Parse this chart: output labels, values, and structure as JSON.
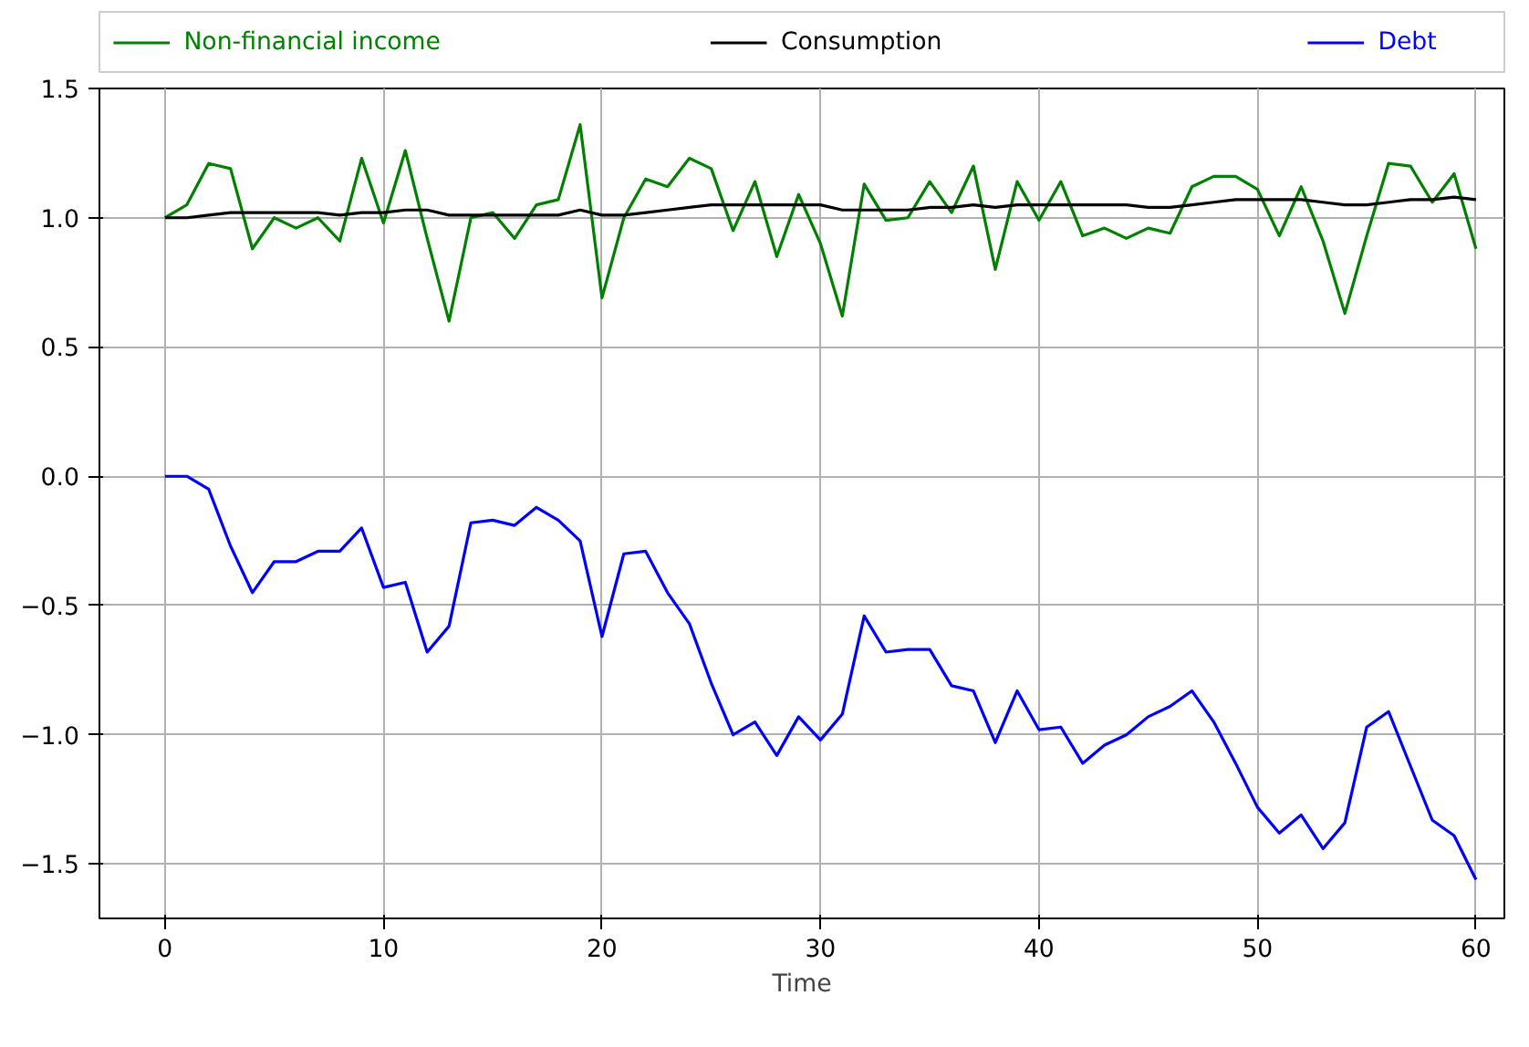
{
  "chart_data": {
    "type": "line",
    "xlabel": "Time",
    "x": [
      0,
      1,
      2,
      3,
      4,
      5,
      6,
      7,
      8,
      9,
      10,
      11,
      12,
      13,
      14,
      15,
      16,
      17,
      18,
      19,
      20,
      21,
      22,
      23,
      24,
      25,
      26,
      27,
      28,
      29,
      30,
      31,
      32,
      33,
      34,
      35,
      36,
      37,
      38,
      39,
      40,
      41,
      42,
      43,
      44,
      45,
      46,
      47,
      48,
      49,
      50,
      51,
      52,
      53,
      54,
      55,
      56,
      57,
      58,
      59,
      60
    ],
    "series": [
      {
        "name": "Non-financial income",
        "color": "#008000",
        "values": [
          1.0,
          1.05,
          1.21,
          1.19,
          0.88,
          1.0,
          0.96,
          1.0,
          0.91,
          1.23,
          0.98,
          1.26,
          0.92,
          0.6,
          1.0,
          1.02,
          0.92,
          1.05,
          1.07,
          1.36,
          0.69,
          1.0,
          1.15,
          1.12,
          1.23,
          1.19,
          0.95,
          1.14,
          0.85,
          1.09,
          0.9,
          0.62,
          1.13,
          0.99,
          1.0,
          1.14,
          1.02,
          1.2,
          0.8,
          1.14,
          0.99,
          1.14,
          0.93,
          0.96,
          0.92,
          0.96,
          0.94,
          1.12,
          1.16,
          1.16,
          1.11,
          0.93,
          1.12,
          0.91,
          0.63,
          0.93,
          1.21,
          1.2,
          1.06,
          1.17,
          0.88
        ]
      },
      {
        "name": "Consumption",
        "color": "#000000",
        "values": [
          1.0,
          1.0,
          1.01,
          1.02,
          1.02,
          1.02,
          1.02,
          1.02,
          1.01,
          1.02,
          1.02,
          1.03,
          1.03,
          1.01,
          1.01,
          1.01,
          1.01,
          1.01,
          1.01,
          1.03,
          1.01,
          1.01,
          1.02,
          1.03,
          1.04,
          1.05,
          1.05,
          1.05,
          1.05,
          1.05,
          1.05,
          1.03,
          1.03,
          1.03,
          1.03,
          1.04,
          1.04,
          1.05,
          1.04,
          1.05,
          1.05,
          1.05,
          1.05,
          1.05,
          1.05,
          1.04,
          1.04,
          1.05,
          1.06,
          1.07,
          1.07,
          1.07,
          1.07,
          1.06,
          1.05,
          1.05,
          1.06,
          1.07,
          1.07,
          1.08,
          1.07
        ]
      },
      {
        "name": "Debt",
        "color": "#0000ff",
        "values": [
          0,
          0,
          -0.05,
          -0.27,
          -0.45,
          -0.33,
          -0.33,
          -0.29,
          -0.29,
          -0.2,
          -0.43,
          -0.41,
          -0.68,
          -0.58,
          -0.18,
          -0.17,
          -0.19,
          -0.12,
          -0.17,
          -0.25,
          -0.62,
          -0.3,
          -0.29,
          -0.45,
          -0.57,
          -0.8,
          -1.0,
          -0.95,
          -1.08,
          -0.93,
          -1.02,
          -0.92,
          -0.54,
          -0.68,
          -0.67,
          -0.67,
          -0.81,
          -0.83,
          -1.03,
          -0.83,
          -0.98,
          -0.97,
          -1.11,
          -1.04,
          -1.0,
          -0.93,
          -0.89,
          -0.83,
          -0.95,
          -1.11,
          -1.28,
          -1.38,
          -1.31,
          -1.44,
          -1.34,
          -0.97,
          -0.91,
          -1.12,
          -1.33,
          -1.39,
          -1.56
        ]
      }
    ],
    "xlim": [
      -3,
      61.3
    ],
    "ylim": [
      -1.71,
      1.5
    ],
    "xticks": [
      0,
      10,
      20,
      30,
      40,
      50,
      60
    ],
    "yticks": [
      {
        "value": -1.5,
        "label": "−1.5"
      },
      {
        "value": -1.0,
        "label": "−1.0"
      },
      {
        "value": -0.5,
        "label": "−0.5"
      },
      {
        "value": 0.0,
        "label": "0.0"
      },
      {
        "value": 0.5,
        "label": "0.5"
      },
      {
        "value": 1.0,
        "label": "1.0"
      },
      {
        "value": 1.5,
        "label": "1.5"
      }
    ],
    "grid": true,
    "legend": "top",
    "marker": "none",
    "line_style": "solid"
  }
}
